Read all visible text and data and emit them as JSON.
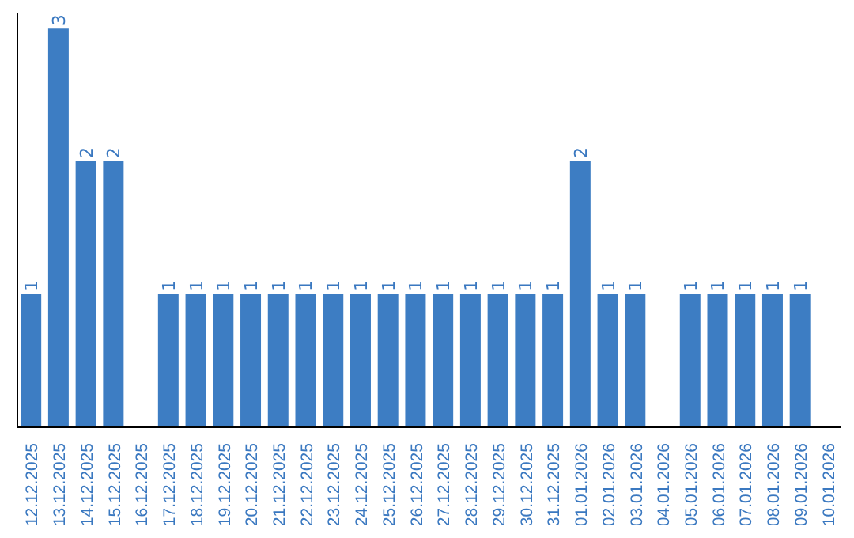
{
  "chart_data": {
    "type": "bar",
    "categories": [
      "12.12.2025",
      "13.12.2025",
      "14.12.2025",
      "15.12.2025",
      "16.12.2025",
      "17.12.2025",
      "18.12.2025",
      "19.12.2025",
      "20.12.2025",
      "21.12.2025",
      "22.12.2025",
      "23.12.2025",
      "24.12.2025",
      "25.12.2025",
      "26.12.2025",
      "27.12.2025",
      "28.12.2025",
      "29.12.2025",
      "30.12.2025",
      "31.12.2025",
      "01.01.2026",
      "02.01.2026",
      "03.01.2026",
      "04.01.2026",
      "05.01.2026",
      "06.01.2026",
      "07.01.2026",
      "08.01.2026",
      "09.01.2026",
      "10.01.2026"
    ],
    "values": [
      1,
      3,
      2,
      2,
      null,
      1,
      1,
      1,
      1,
      1,
      1,
      1,
      1,
      1,
      1,
      1,
      1,
      1,
      1,
      1,
      2,
      1,
      1,
      null,
      1,
      1,
      1,
      1,
      1,
      null
    ],
    "color": "#3d7dc3",
    "relative": false,
    "data_labels": true,
    "grid": false,
    "legend": false
  }
}
